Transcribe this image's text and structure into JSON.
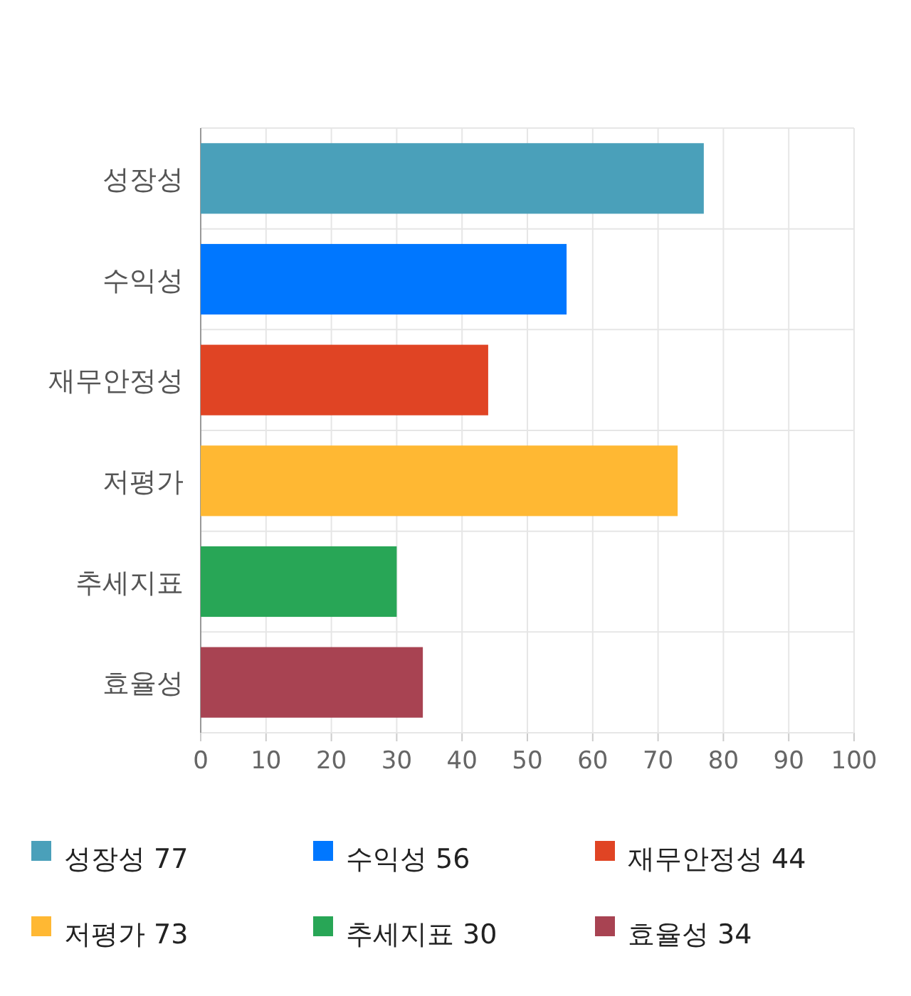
{
  "chart_data": {
    "type": "bar",
    "orientation": "horizontal",
    "stacked": true,
    "categories": [
      "성장성",
      "수익성",
      "재무안정성",
      "저평가",
      "추세지표",
      "효율성"
    ],
    "series": [
      {
        "name": "성장성 77",
        "color": "#4aa0ba",
        "values": [
          77,
          null,
          null,
          null,
          null,
          null
        ]
      },
      {
        "name": "수익성 56",
        "color": "#0077ff",
        "values": [
          null,
          56,
          null,
          null,
          null,
          null
        ]
      },
      {
        "name": "재무안정성 44",
        "color": "#e04424",
        "values": [
          null,
          null,
          44,
          null,
          null,
          null
        ]
      },
      {
        "name": "저평가 73",
        "color": "#ffb833",
        "values": [
          null,
          null,
          null,
          73,
          null,
          null
        ]
      },
      {
        "name": "추세지표 30",
        "color": "#28a656",
        "values": [
          null,
          null,
          null,
          null,
          30,
          null
        ]
      },
      {
        "name": "효율성 34",
        "color": "#a84352",
        "values": [
          null,
          null,
          null,
          null,
          null,
          34
        ]
      }
    ],
    "xlim": [
      0,
      100
    ],
    "xticks": [
      0,
      10,
      20,
      30,
      40,
      50,
      60,
      70,
      80,
      90,
      100
    ],
    "grid": true,
    "legend": "bottom"
  }
}
